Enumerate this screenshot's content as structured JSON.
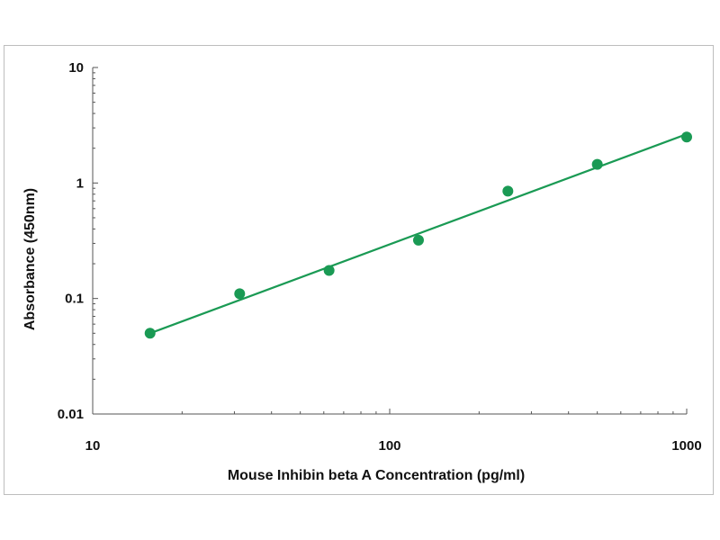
{
  "chart_data": {
    "type": "scatter",
    "xlabel": "Mouse Inhibin beta A Concentration (pg/ml)",
    "ylabel": "Absorbance (450nm)",
    "x_scale": "log",
    "y_scale": "log",
    "xlim": [
      10,
      1000
    ],
    "ylim": [
      0.01,
      10
    ],
    "x_ticks": [
      10,
      100,
      1000
    ],
    "x_tick_labels": [
      "10",
      "100",
      "1000"
    ],
    "y_ticks": [
      0.01,
      0.1,
      1,
      10
    ],
    "y_tick_labels": [
      "0.01",
      "0.1",
      "1",
      "10"
    ],
    "grid": false,
    "legend": "none",
    "color": "#1a9a54",
    "series": [
      {
        "x": [
          15.6,
          31.25,
          62.5,
          125,
          250,
          500,
          1000
        ],
        "y": [
          0.05,
          0.11,
          0.175,
          0.32,
          0.85,
          1.45,
          2.5
        ],
        "trendline": {
          "type": "power",
          "x_range": [
            15.6,
            1000
          ],
          "y_range": [
            0.05,
            2.65
          ]
        }
      }
    ]
  }
}
